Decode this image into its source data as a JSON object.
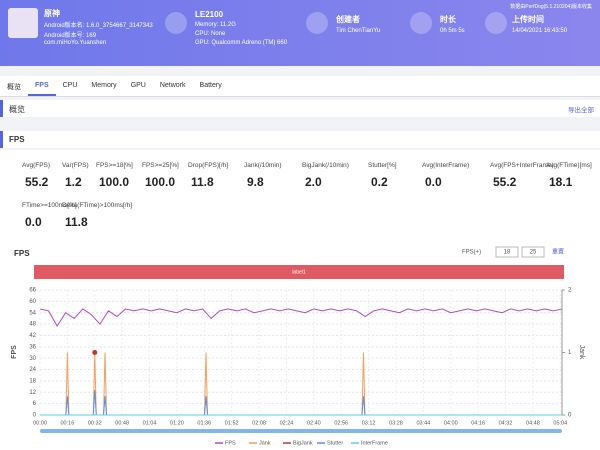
{
  "header": {
    "note": "数据由PerfDog(5.1.210204)版本收集",
    "app": {
      "name": "原神",
      "version_name": "Android版本名: 1.6.0_3754667_3147343",
      "version_code": "Android版本号: 169",
      "package": "com.miHoYo.Yuanshen"
    },
    "device": {
      "name": "LE2100",
      "memory": "Memory: 11.2G",
      "cpu": "CPU: None",
      "gpu": "GPU: Qualcomm Adreno (TM) 660"
    },
    "creator": {
      "label": "创建者",
      "value": "Tim ChenTianYu"
    },
    "duration": {
      "label": "时长",
      "value": "0h 5m 5s"
    },
    "upload": {
      "label": "上传时间",
      "value": "14/04/2021 16:43:50"
    }
  },
  "tabs": [
    "概览",
    "FPS",
    "CPU",
    "Memory",
    "GPU",
    "Network",
    "Battery"
  ],
  "overview": {
    "title": "概览",
    "export": "导出全部"
  },
  "fps_section": {
    "title": "FPS"
  },
  "metrics": [
    [
      {
        "label": "Avg(FPS)",
        "value": "55.2"
      },
      {
        "label": "Var(FPS)",
        "value": "1.2"
      },
      {
        "label": "FPS>=18[%]",
        "value": "100.0"
      },
      {
        "label": "FPS>=25[%]",
        "value": "100.0"
      },
      {
        "label": "Drop(FPS)[/h]",
        "value": "11.8"
      },
      {
        "label": "Jank(/10min)",
        "value": "9.8"
      },
      {
        "label": "BigJank(/10min)",
        "value": "2.0"
      },
      {
        "label": "Stutter[%]",
        "value": "0.2"
      },
      {
        "label": "Avg(InterFrame)",
        "value": "0.0"
      },
      {
        "label": "Avg(FPS+InterFrame)",
        "value": "55.2"
      },
      {
        "label": "Avg(FTime)[ms]",
        "value": "18.1"
      }
    ],
    [
      {
        "label": "FTime>=100ms[%]",
        "value": "0.0"
      },
      {
        "label": "Delta(FTime)>100ms[/h]",
        "value": "11.8"
      }
    ]
  ],
  "chart": {
    "type": "line",
    "title": "FPS",
    "threshold_label": "FPS(+)",
    "thresholds": [
      "18",
      "25"
    ],
    "reset": "重置",
    "band_label": "label1",
    "ylabel": "FPS",
    "y2label": "Jank",
    "xlim": [
      0,
      305
    ],
    "ylim": [
      0,
      66
    ],
    "y2lim": [
      0,
      2
    ],
    "yticks": [
      0,
      6,
      12,
      18,
      24,
      30,
      36,
      42,
      48,
      54,
      60,
      66
    ],
    "y2ticks": [
      0,
      1,
      2
    ],
    "xticks": [
      {
        "value": 0,
        "label": "00:00"
      },
      {
        "value": 16,
        "label": "00:16"
      },
      {
        "value": 32,
        "label": "00:32"
      },
      {
        "value": 48,
        "label": "00:48"
      },
      {
        "value": 64,
        "label": "01:04"
      },
      {
        "value": 80,
        "label": "01:20"
      },
      {
        "value": 96,
        "label": "01:36"
      },
      {
        "value": 112,
        "label": "01:52"
      },
      {
        "value": 128,
        "label": "02:08"
      },
      {
        "value": 144,
        "label": "02:24"
      },
      {
        "value": 160,
        "label": "02:40"
      },
      {
        "value": 176,
        "label": "02:56"
      },
      {
        "value": 192,
        "label": "03:12"
      },
      {
        "value": 208,
        "label": "03:28"
      },
      {
        "value": 224,
        "label": "03:44"
      },
      {
        "value": 240,
        "label": "04:00"
      },
      {
        "value": 256,
        "label": "04:16"
      },
      {
        "value": 272,
        "label": "04:32"
      },
      {
        "value": 288,
        "label": "04:48"
      },
      {
        "value": 304,
        "label": "05:04"
      }
    ],
    "grid": true,
    "series": [
      {
        "name": "FPS",
        "color": "#b04cc0",
        "style": "line",
        "x": [
          0,
          5,
          10,
          15,
          20,
          25,
          30,
          35,
          40,
          45,
          50,
          55,
          60,
          65,
          70,
          75,
          80,
          85,
          90,
          95,
          100,
          105,
          110,
          115,
          120,
          125,
          130,
          135,
          140,
          145,
          150,
          155,
          160,
          165,
          170,
          175,
          180,
          185,
          190,
          195,
          200,
          205,
          210,
          215,
          220,
          225,
          230,
          235,
          240,
          245,
          250,
          255,
          260,
          265,
          270,
          275,
          280,
          285,
          290,
          295,
          300,
          305
        ],
        "values": [
          56,
          55,
          47,
          54,
          51,
          56,
          53,
          48,
          55,
          52,
          56,
          55,
          56,
          55,
          56,
          55,
          54,
          56,
          55,
          56,
          51,
          55,
          56,
          55,
          56,
          54,
          55,
          56,
          55,
          56,
          55,
          54,
          56,
          55,
          56,
          55,
          56,
          55,
          52,
          55,
          56,
          55,
          54,
          56,
          55,
          56,
          55,
          56,
          54,
          55,
          56,
          55,
          56,
          55,
          54,
          56,
          55,
          56,
          55,
          56,
          55,
          56
        ]
      },
      {
        "name": "Jank",
        "color": "#f0a060",
        "style": "spike",
        "axis": "y2",
        "x": [
          16,
          32,
          38,
          97,
          189
        ],
        "values": [
          1,
          1,
          1,
          1,
          1
        ]
      },
      {
        "name": "BigJank",
        "color": "#c0392b",
        "style": "point",
        "axis": "y2",
        "x": [
          32
        ],
        "values": [
          1
        ]
      },
      {
        "name": "Stutter",
        "color": "#5b8fd6",
        "style": "spike",
        "axis": "y2",
        "x": [
          16,
          32,
          38,
          97,
          189
        ],
        "values": [
          0.3,
          0.4,
          0.3,
          0.3,
          0.3
        ]
      },
      {
        "name": "InterFrame",
        "color": "#5fd0d8",
        "style": "line",
        "axis": "y2",
        "x": [
          0,
          305
        ],
        "values": [
          0,
          0
        ]
      }
    ]
  }
}
